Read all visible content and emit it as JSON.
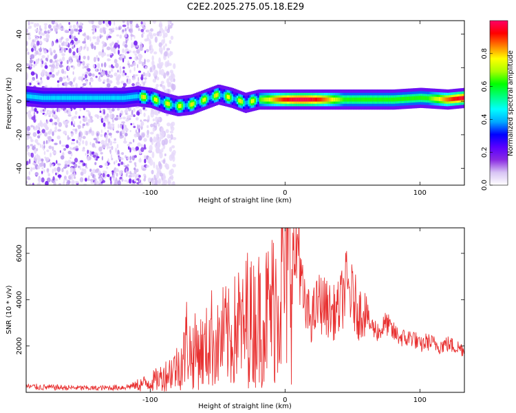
{
  "title": "C2E2.2025.275.05.18.E29",
  "chart_data": [
    {
      "type": "heatmap",
      "title": "C2E2.2025.275.05.18.E29",
      "xlabel": "Height of straight line (km)",
      "ylabel": "Frequency (Hz)",
      "xlim": [
        -192,
        133
      ],
      "ylim": [
        -50,
        48
      ],
      "x_ticks": [
        -100,
        0,
        100
      ],
      "y_ticks": [
        -40,
        -20,
        0,
        20,
        40
      ],
      "colorbar": {
        "label": "Normalized spectral amplitude",
        "range": [
          0,
          1
        ],
        "ticks": [
          "0.0",
          "0.2",
          "0.4",
          "0.6",
          "0.8"
        ],
        "colormap": [
          "#ffffff",
          "#d8c4f4",
          "#8a2be2",
          "#5a00ff",
          "#0000ff",
          "#00aaff",
          "#00ffff",
          "#00ff80",
          "#00ff00",
          "#aaff00",
          "#ffff00",
          "#ff8000",
          "#ff0000",
          "#ff0066"
        ]
      },
      "ridge": {
        "x": [
          -192,
          -180,
          -160,
          -140,
          -120,
          -110,
          -100,
          -90,
          -80,
          -70,
          -60,
          -50,
          -40,
          -30,
          -20,
          -10,
          0,
          20,
          40,
          60,
          80,
          100,
          120,
          133
        ],
        "y": [
          3,
          2,
          2,
          2,
          2,
          3,
          2,
          -1,
          -3,
          -2,
          1,
          4,
          2,
          -1,
          1,
          1,
          1,
          1,
          1,
          1,
          1,
          2,
          1,
          2
        ]
      },
      "grid": false
    },
    {
      "type": "line",
      "xlabel": "Height of straight line (km)",
      "ylabel": "SNR (10 * v/v)",
      "xlim": [
        -192,
        133
      ],
      "ylim": [
        0,
        7100
      ],
      "x_ticks": [
        -100,
        0,
        100
      ],
      "y_ticks": [
        2000,
        4000,
        6000
      ],
      "series": [
        {
          "color": "#e83030",
          "x": [
            -192,
            -180,
            -160,
            -140,
            -120,
            -110,
            -100,
            -95,
            -90,
            -85,
            -80,
            -75,
            -72,
            -70,
            -65,
            -60,
            -55,
            -50,
            -45,
            -40,
            -35,
            -30,
            -28,
            -25,
            -20,
            -15,
            -10,
            -5,
            0,
            5,
            8,
            10,
            12,
            15,
            20,
            25,
            30,
            35,
            40,
            45,
            50,
            55,
            60,
            62,
            65,
            70,
            75,
            80,
            85,
            90,
            95,
            100,
            105,
            110,
            115,
            120,
            125,
            130,
            133
          ],
          "y": [
            250,
            220,
            200,
            180,
            220,
            300,
            450,
            550,
            700,
            900,
            1100,
            1500,
            2600,
            1500,
            1900,
            1700,
            2400,
            2000,
            2500,
            2200,
            3000,
            2500,
            3500,
            3000,
            3200,
            3300,
            3600,
            4400,
            5300,
            5900,
            5500,
            7000,
            4600,
            3500,
            3200,
            3900,
            3700,
            3400,
            3600,
            4600,
            4100,
            3400,
            3700,
            3000,
            2800,
            2600,
            3000,
            2600,
            2400,
            2300,
            2400,
            2000,
            2200,
            2100,
            2000,
            2100,
            2000,
            1900,
            1850
          ]
        }
      ],
      "grid": false
    }
  ]
}
